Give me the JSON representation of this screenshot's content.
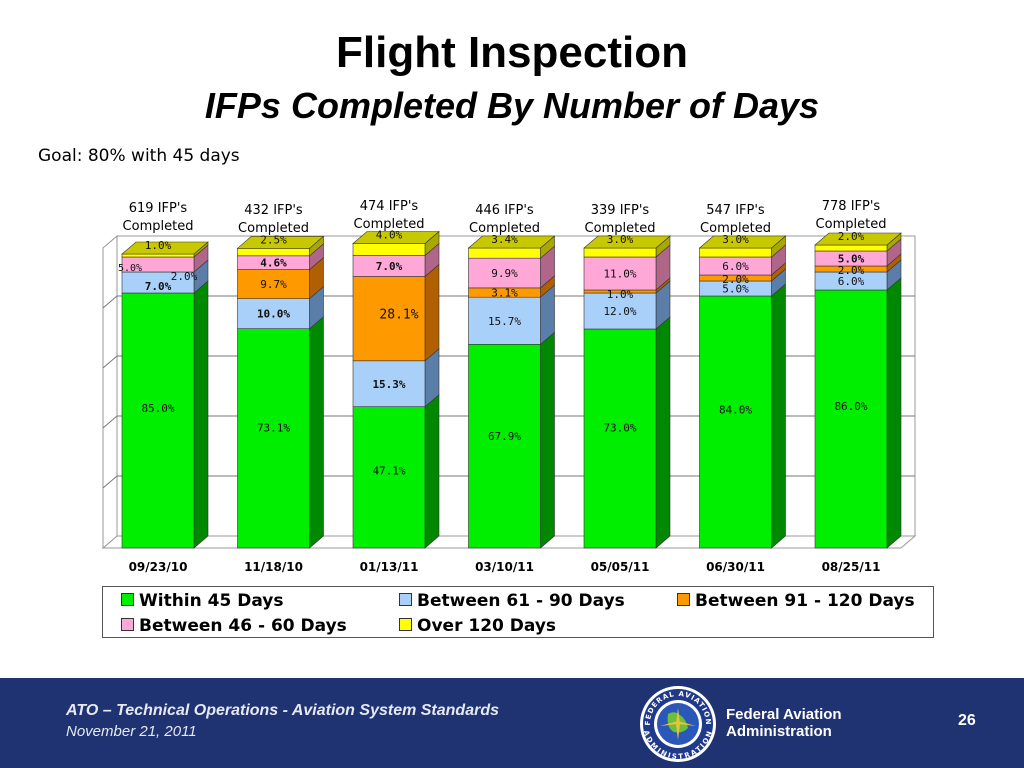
{
  "slide": {
    "title": "Flight Inspection",
    "subtitle": "IFPs Completed By Number of Days",
    "goal": "Goal: 80% with 45 days"
  },
  "chart_data": {
    "type": "bar",
    "stacked": true,
    "three_d": true,
    "categories": [
      "09/23/10",
      "11/18/10",
      "01/13/11",
      "03/10/11",
      "05/05/11",
      "06/30/11",
      "08/25/11"
    ],
    "column_headers": [
      "619 IFP's Completed",
      "432 IFP's Completed",
      "474 IFP's Completed",
      "446 IFP's Completed",
      "339 IFP's Completed",
      "547 IFP's Completed",
      "778 IFP's Completed"
    ],
    "series": [
      {
        "name": "Within 45 Days",
        "color": "#00ee00",
        "side": "#008800",
        "top": "#66ff66",
        "values": [
          85.0,
          73.1,
          47.1,
          67.9,
          73.0,
          84.0,
          86.0
        ],
        "labels": [
          "85.0%",
          "73.1%",
          "47.1%",
          "67.9%",
          "73.0%",
          "84.0%",
          "86.0%"
        ]
      },
      {
        "name": "Between 61 - 90 Days",
        "color": "#a8d0f8",
        "side": "#5a7ea8",
        "top": "#cfe6ff",
        "values": [
          7.0,
          10.0,
          15.3,
          15.7,
          12.0,
          5.0,
          6.0
        ],
        "labels": [
          "7.0%",
          "10.0%",
          "15.3%",
          "15.7%",
          "12.0%",
          "5.0%",
          "6.0%"
        ]
      },
      {
        "name": "Between 91 - 120 Days",
        "color": "#ff9900",
        "side": "#b06000",
        "top": "#ffc066",
        "values": [
          0.0,
          9.7,
          28.1,
          3.1,
          1.0,
          2.0,
          2.0
        ],
        "labels": [
          "",
          "9.7%",
          "28.1%",
          "3.1%",
          "1.0%",
          "2.0%",
          "2.0%"
        ]
      },
      {
        "name": "Between 46 - 60 Days",
        "color": "#ffa8d8",
        "side": "#b06688",
        "top": "#ffd0ea",
        "values": [
          5.0,
          4.6,
          7.0,
          9.9,
          11.0,
          6.0,
          5.0
        ],
        "labels": [
          "5.0%",
          "4.6%",
          "7.0%",
          "9.9%",
          "11.0%",
          "6.0%",
          "5.0%"
        ]
      },
      {
        "name": "Over 120 Days",
        "color": "#ffff00",
        "side": "#a8a800",
        "top": "#c8c800",
        "values": [
          1.0,
          2.5,
          4.0,
          3.4,
          3.0,
          3.0,
          2.0
        ],
        "labels": [
          "1.0%",
          "2.5%",
          "4.0%",
          "3.4%",
          "3.0%",
          "3.0%",
          "2.0%"
        ]
      }
    ],
    "extra_labels": [
      {
        "category_index": 0,
        "text": "2.0%"
      }
    ],
    "ylim": [
      0,
      100
    ],
    "grid": true,
    "legend_position": "bottom",
    "legend_order": [
      "Within 45 Days",
      "Between 61 - 90 Days",
      "Between 91 - 120 Days",
      "Between 46 - 60 Days",
      "Over 120 Days"
    ]
  },
  "footer": {
    "org": "ATO – Technical Operations - Aviation System Standards",
    "date": "November 21, 2011",
    "agency_line1": "Federal Aviation",
    "agency_line2": "Administration",
    "seal_text_top": "FEDERAL AVIATION",
    "seal_text_bottom": "ADMINISTRATION",
    "page_number": "26",
    "background": "#1f3272",
    "seal_icon": "faa-seal-icon"
  }
}
